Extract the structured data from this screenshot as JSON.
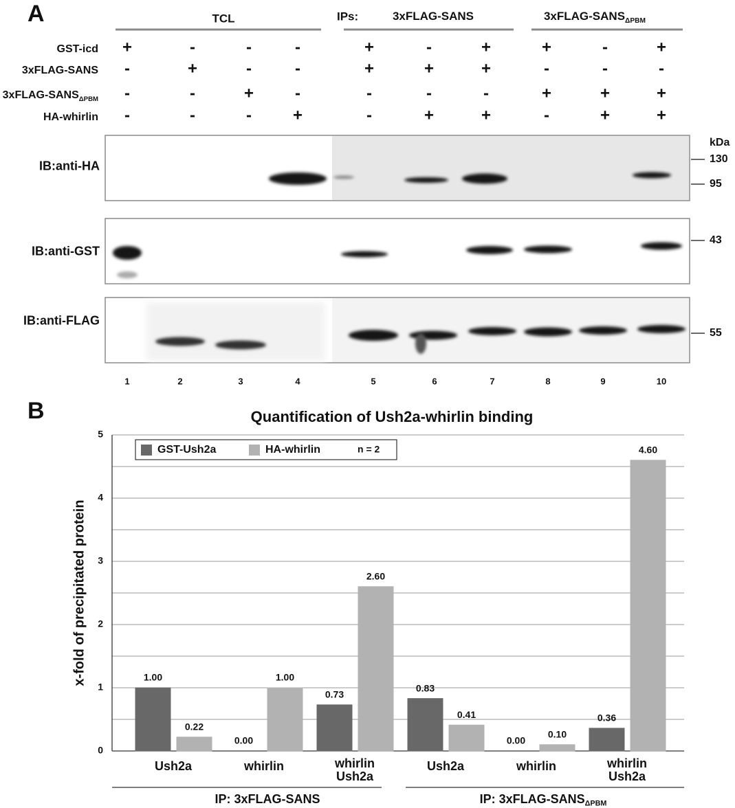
{
  "panel_a": {
    "label": "A",
    "tcl": "TCL",
    "ips": "IPs:",
    "ip_groups": [
      {
        "text": "3xFLAG-SANS"
      },
      {
        "text": "3xFLAG-SANS",
        "sub": "ΔPBM"
      }
    ],
    "rows": [
      {
        "label": {
          "text": "GST-icd"
        },
        "signs": [
          "+",
          "-",
          "-",
          "-",
          "+",
          "-",
          "+",
          "+",
          "-",
          "+"
        ]
      },
      {
        "label": {
          "text": "3xFLAG-SANS"
        },
        "signs": [
          "-",
          "+",
          "-",
          "-",
          "+",
          "+",
          "+",
          "-",
          "-",
          "-"
        ]
      },
      {
        "label": {
          "text": "3xFLAG-SANS",
          "sub": "ΔPBM"
        },
        "signs": [
          "-",
          "-",
          "+",
          "-",
          "-",
          "-",
          "-",
          "+",
          "+",
          "+"
        ]
      },
      {
        "label": {
          "text": "HA-whirlin"
        },
        "signs": [
          "-",
          "-",
          "-",
          "+",
          "-",
          "+",
          "+",
          "-",
          "+",
          "+"
        ]
      }
    ],
    "blots": [
      "IB:anti-HA",
      "IB:anti-GST",
      "IB:anti-FLAG"
    ],
    "kda_unit": "kDa",
    "kda_markers": [
      "130",
      "95",
      "43",
      "55"
    ],
    "lanes": [
      1,
      2,
      3,
      4,
      5,
      6,
      7,
      8,
      9,
      10
    ]
  },
  "chart_data": {
    "type": "bar",
    "label": "B",
    "title": "Quantification of Ush2a-whirlin binding",
    "y_label": "x-fold of precipitated protein",
    "categories": [
      "Ush2a",
      "whirlin",
      "whirlin\nUsh2a",
      "Ush2a",
      "whirlin",
      "whirlin\nUsh2a"
    ],
    "groups": [
      {
        "text": "IP: 3xFLAG-SANS"
      },
      {
        "text": "IP: 3xFLAG-SANS",
        "sub": "ΔPBM"
      }
    ],
    "series": [
      {
        "name": "GST-Ush2a",
        "color": "#686868",
        "values": [
          1.0,
          0.0,
          0.73,
          0.83,
          0.0,
          0.36
        ],
        "value_labels": [
          "1.00",
          "0.00",
          "0.73",
          "0.83",
          "0.00",
          "0.36"
        ]
      },
      {
        "name": "HA-whirlin",
        "color": "#b2b2b2",
        "values": [
          0.22,
          1.0,
          2.6,
          0.41,
          0.1,
          4.6
        ],
        "value_labels": [
          "0.22",
          "1.00",
          "2.60",
          "0.41",
          "0.10",
          "4.60"
        ]
      }
    ],
    "legend_note": "n = 2",
    "ylim": [
      0,
      5
    ],
    "yticks": [
      0,
      1,
      2,
      3,
      4,
      5
    ],
    "minor_yticks": [
      0.5,
      1.5,
      2.5,
      3.5,
      4.5
    ],
    "grid": true
  }
}
